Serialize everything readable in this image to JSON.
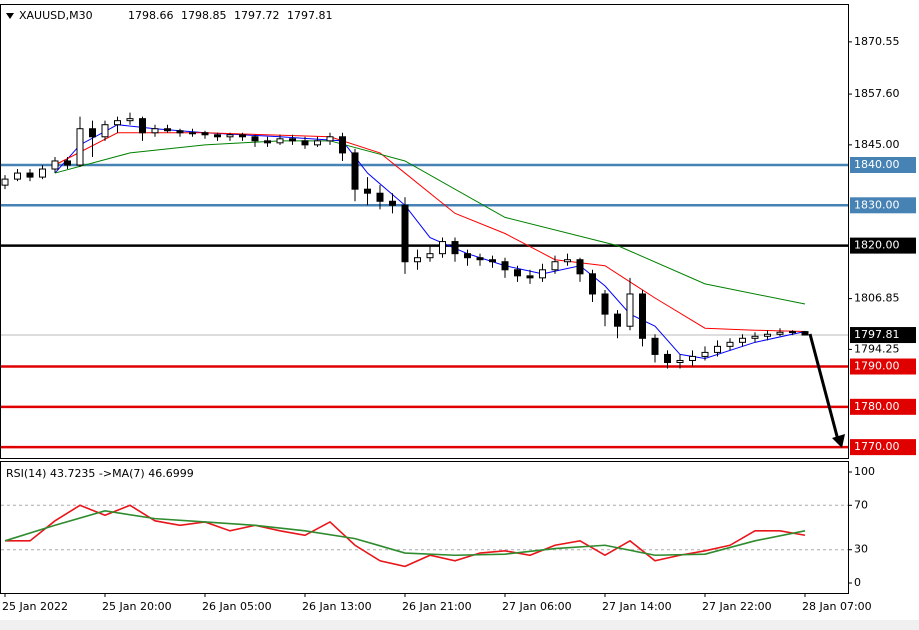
{
  "chart_data": [
    {
      "type": "candlestick",
      "title": "XAUUSD,M30",
      "xlim": [
        -0.4,
        67.44
      ],
      "ylim": [
        1767.3,
        1879.7
      ],
      "yticks": [
        1870.55,
        {
          "value": 1857.6,
          "label": "1857.60"
        },
        {
          "value": 1845,
          "label": "1845.00"
        },
        1806.85,
        1794.25
      ],
      "up_color": "#ffffff",
      "down_color": "#000000",
      "candles": [
        [
          1835,
          1837.5,
          1834,
          1836.5
        ],
        [
          1836.5,
          1839,
          1836,
          1838
        ],
        [
          1838,
          1839,
          1836,
          1837
        ],
        [
          1837,
          1840,
          1836.5,
          1839
        ],
        [
          1839,
          1842,
          1838,
          1841
        ],
        [
          1841,
          1842,
          1839,
          1840
        ],
        [
          1840,
          1852,
          1839.5,
          1849
        ],
        [
          1849,
          1851,
          1842,
          1847
        ],
        [
          1847,
          1851,
          1846,
          1850
        ],
        [
          1850,
          1852,
          1848,
          1851
        ],
        [
          1851,
          1853,
          1850,
          1851.5
        ],
        [
          1851.5,
          1852,
          1846,
          1848
        ],
        [
          1848,
          1850,
          1847,
          1849
        ],
        [
          1849,
          1850,
          1848,
          1848.5
        ],
        [
          1848.5,
          1849,
          1847,
          1848
        ],
        [
          1848,
          1849,
          1847,
          1848
        ],
        [
          1848,
          1848.5,
          1846.5,
          1847.5
        ],
        [
          1847.5,
          1848,
          1846,
          1847
        ],
        [
          1847,
          1848,
          1846,
          1847.5
        ],
        [
          1847.5,
          1848,
          1846,
          1847
        ],
        [
          1847,
          1847.5,
          1844.5,
          1846
        ],
        [
          1846,
          1847,
          1844.5,
          1845.5
        ],
        [
          1845.5,
          1847.5,
          1845,
          1846.5
        ],
        [
          1846.5,
          1847.5,
          1845,
          1846
        ],
        [
          1846,
          1847,
          1844,
          1845
        ],
        [
          1845,
          1847,
          1844.5,
          1846
        ],
        [
          1846,
          1848,
          1845,
          1847
        ],
        [
          1847,
          1848,
          1841,
          1843
        ],
        [
          1843,
          1844,
          1831,
          1834
        ],
        [
          1834,
          1837,
          1830,
          1833
        ],
        [
          1833,
          1835,
          1829,
          1831
        ],
        [
          1831,
          1833,
          1828,
          1830
        ],
        [
          1830,
          1832,
          1813,
          1816
        ],
        [
          1816,
          1819,
          1814,
          1817
        ],
        [
          1817,
          1820,
          1816,
          1818
        ],
        [
          1818,
          1822,
          1817,
          1821
        ],
        [
          1821,
          1822,
          1816,
          1818
        ],
        [
          1818,
          1819,
          1815,
          1817
        ],
        [
          1817,
          1818,
          1815,
          1816.5
        ],
        [
          1816.5,
          1817.5,
          1814.5,
          1816
        ],
        [
          1816,
          1817,
          1812,
          1814
        ],
        [
          1814,
          1815,
          1811,
          1812.5
        ],
        [
          1812.5,
          1814,
          1810.5,
          1812
        ],
        [
          1812,
          1815.5,
          1811,
          1814
        ],
        [
          1814,
          1817.5,
          1813,
          1816
        ],
        [
          1816,
          1818,
          1815,
          1816.5
        ],
        [
          1816.5,
          1817,
          1811,
          1813
        ],
        [
          1813,
          1814,
          1806,
          1808
        ],
        [
          1808,
          1809,
          1800,
          1803
        ],
        [
          1803,
          1804,
          1797,
          1800
        ],
        [
          1800,
          1812,
          1799,
          1808
        ],
        [
          1808,
          1809,
          1795,
          1797
        ],
        [
          1797,
          1798,
          1791,
          1793
        ],
        [
          1793,
          1794,
          1789.5,
          1791
        ],
        [
          1791,
          1793,
          1789.5,
          1791.5
        ],
        [
          1791.5,
          1794,
          1790,
          1792.5
        ],
        [
          1792.5,
          1795,
          1791.5,
          1793.5
        ],
        [
          1793.5,
          1796.5,
          1792.5,
          1795
        ],
        [
          1795,
          1797,
          1794,
          1796
        ],
        [
          1796,
          1798,
          1795,
          1797
        ],
        [
          1797,
          1798.5,
          1796,
          1797.5
        ],
        [
          1797.5,
          1799,
          1796.5,
          1798
        ],
        [
          1798,
          1799.5,
          1797.5,
          1798.5
        ],
        [
          1798.5,
          1799,
          1797.8,
          1798.66
        ],
        [
          1798.66,
          1798.85,
          1797.72,
          1797.81
        ]
      ],
      "series": [
        {
          "color": "#0000ff",
          "x": [
            4,
            6,
            9,
            12,
            16,
            22,
            27,
            29,
            32,
            34,
            37,
            40,
            43,
            46,
            48,
            50,
            52,
            54,
            56,
            60,
            64
          ],
          "values": [
            1838,
            1845,
            1850,
            1849,
            1848,
            1847,
            1846,
            1838,
            1830,
            1822,
            1818,
            1815,
            1813,
            1815,
            1810,
            1803,
            1800,
            1793,
            1792,
            1796,
            1798.7
          ]
        },
        {
          "color": "#ff0000",
          "x": [
            4,
            9,
            16,
            26,
            30,
            32,
            36,
            40,
            44,
            48,
            52,
            56,
            60,
            64
          ],
          "values": [
            1840,
            1848,
            1848,
            1847,
            1843,
            1838,
            1828,
            1823,
            1816.5,
            1815,
            1807,
            1799.5,
            1799,
            1798.7
          ]
        },
        {
          "color": "#008000",
          "x": [
            4,
            10,
            16,
            22,
            26,
            32,
            40,
            49,
            56,
            64
          ],
          "values": [
            1838,
            1843,
            1845,
            1846,
            1846,
            1841,
            1827,
            1820,
            1810.5,
            1805.5
          ]
        }
      ],
      "levels": [
        {
          "value": 1840,
          "label": "1840.00",
          "color": "#4682b4"
        },
        {
          "value": 1830,
          "label": "1830.00",
          "color": "#4682b4"
        },
        {
          "value": 1820,
          "label": "1820.00",
          "color": "#000000"
        },
        {
          "value": 1790,
          "label": "1790.00",
          "color": "#e00000"
        },
        {
          "value": 1780,
          "label": "1780.00",
          "color": "#e00000"
        },
        {
          "value": 1770,
          "label": "1770.00",
          "color": "#e00000"
        }
      ]
    },
    {
      "type": "line",
      "title": "RSI(14) 43.7235  ->MA(7) 46.6999",
      "xlim": [
        -0.4,
        67.44
      ],
      "ylim": [
        -9,
        109
      ],
      "yticks": [
        0,
        30,
        70,
        100
      ],
      "levels": [
        30,
        70
      ],
      "xticks": [
        {
          "value": 0,
          "label": "25 Jan 2022"
        },
        {
          "value": 8,
          "label": "25 Jan 20:00"
        },
        {
          "value": 16,
          "label": "26 Jan 05:00"
        },
        {
          "value": 24,
          "label": "26 Jan 13:00"
        },
        {
          "value": 32,
          "label": "26 Jan 21:00"
        },
        {
          "value": 40,
          "label": "27 Jan 06:00"
        },
        {
          "value": 48,
          "label": "27 Jan 14:00"
        },
        {
          "value": 56,
          "label": "27 Jan 22:00"
        },
        {
          "value": 64,
          "label": "28 Jan 07:00"
        }
      ],
      "series": [
        {
          "color": "#e8161b",
          "x": [
            0,
            2,
            4,
            6,
            8,
            10,
            12,
            14,
            16,
            18,
            20,
            22,
            24,
            26,
            28,
            30,
            32,
            34,
            36,
            38,
            40,
            42,
            44,
            46,
            48,
            50,
            52,
            54,
            56,
            58,
            60,
            62,
            64
          ],
          "values": [
            38,
            38,
            56,
            70,
            61,
            70,
            56,
            52,
            55,
            47,
            52,
            47,
            43,
            55,
            34,
            20,
            15,
            25,
            20,
            27,
            29,
            25,
            34,
            38,
            25,
            38,
            20,
            25,
            29,
            34,
            47,
            47,
            43
          ]
        },
        {
          "color": "#2e8b2e",
          "x": [
            0,
            4,
            8,
            12,
            16,
            20,
            24,
            28,
            32,
            36,
            40,
            44,
            48,
            52,
            56,
            60,
            64
          ],
          "values": [
            38,
            52,
            65,
            58,
            55,
            52,
            47,
            40,
            27,
            25,
            26,
            31,
            34,
            25,
            26,
            38,
            47
          ]
        }
      ]
    }
  ]
}
